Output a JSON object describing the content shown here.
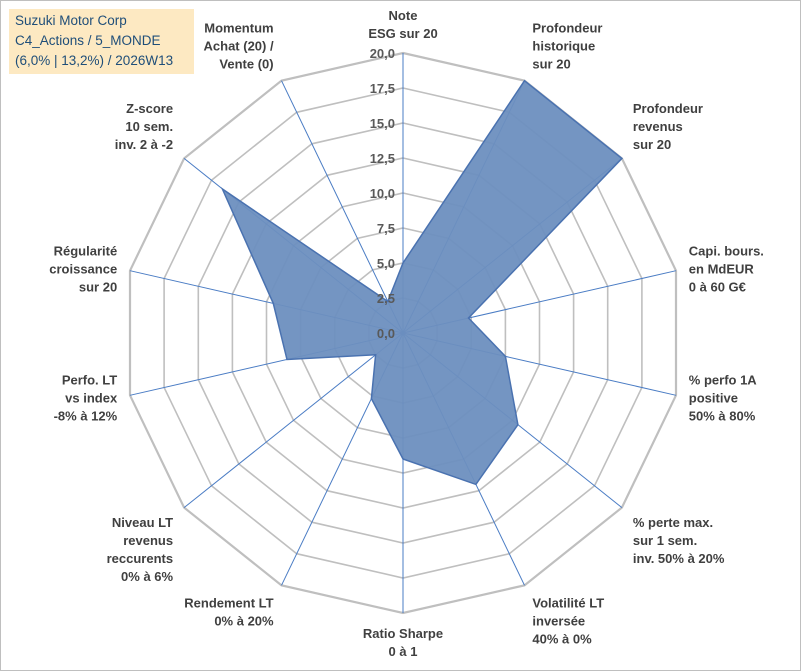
{
  "title_box": {
    "line1": "Suzuki Motor Corp",
    "line2": "C4_Actions / 5_MONDE",
    "line3": "(6,0% | 13,2%) / 2026W13"
  },
  "chart_data": {
    "type": "radar",
    "r_min": 0,
    "r_max": 20,
    "tick_step": 2.5,
    "tick_labels": [
      "0,0",
      "2,5",
      "5,0",
      "7,5",
      "10,0",
      "12,5",
      "15,0",
      "17,5",
      "20,0"
    ],
    "axes": [
      {
        "label": [
          "Note",
          "ESG sur 20"
        ],
        "value": 5.0
      },
      {
        "label": [
          "Profondeur",
          "historique",
          "sur 20"
        ],
        "value": 20.0
      },
      {
        "label": [
          "Profondeur",
          "revenus",
          "sur 20"
        ],
        "value": 20.0
      },
      {
        "label": [
          "Capi. bours.",
          "en MdEUR",
          "0 à 60 G€"
        ],
        "value": 4.8
      },
      {
        "label": [
          "% perfo 1A",
          "positive",
          "50% à 80%"
        ],
        "value": 7.5
      },
      {
        "label": [
          "% perte max.",
          "sur 1 sem.",
          "inv. 50% à 20%"
        ],
        "value": 10.5
      },
      {
        "label": [
          "Volatilité LT",
          "inversée",
          "40% à 0%"
        ],
        "value": 12.0
      },
      {
        "label": [
          "Ratio Sharpe",
          "0 à 1"
        ],
        "value": 9.0
      },
      {
        "label": [
          "Rendement LT",
          "0% à 20%"
        ],
        "value": 5.2
      },
      {
        "label": [
          "Niveau LT",
          "revenus",
          "reccurents",
          "0% à 6%"
        ],
        "value": 2.5
      },
      {
        "label": [
          "Perfo. LT",
          "vs index",
          "-8% à 12%"
        ],
        "value": 8.5
      },
      {
        "label": [
          "Régularité",
          "croissance",
          "sur 20"
        ],
        "value": 9.5
      },
      {
        "label": [
          "Z-score",
          "10 sem.",
          "inv. 2 à -2"
        ],
        "value": 16.5
      },
      {
        "label": [
          "Momentum",
          "Achat (20) /",
          "Vente (0)"
        ],
        "value": 2.5
      }
    ],
    "fill_color": "#6d8fbf",
    "line_color": "#4a72b0",
    "grid_color": "#bfbfbf",
    "spoke_color": "#4a7cc4"
  }
}
